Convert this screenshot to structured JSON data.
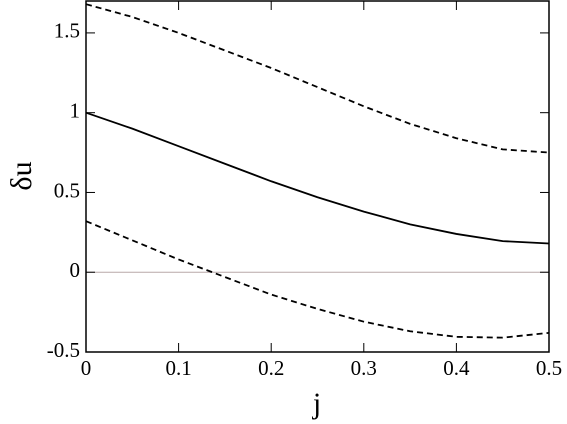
{
  "chart_data": {
    "type": "line",
    "xlabel": "j",
    "ylabel": "δu",
    "x": [
      0,
      0.05,
      0.1,
      0.15,
      0.2,
      0.25,
      0.3,
      0.35,
      0.4,
      0.45,
      0.5
    ],
    "series": [
      {
        "color": "#000000",
        "dash": false,
        "values": [
          1.0,
          0.9,
          0.79,
          0.68,
          0.57,
          0.47,
          0.38,
          0.3,
          0.24,
          0.195,
          0.18
        ]
      },
      {
        "color": "#000000",
        "dash": true,
        "values": [
          1.68,
          1.6,
          1.5,
          1.39,
          1.28,
          1.16,
          1.04,
          0.93,
          0.84,
          0.77,
          0.75
        ]
      },
      {
        "color": "#000000",
        "dash": true,
        "values": [
          0.32,
          0.2,
          0.08,
          -0.03,
          -0.14,
          -0.23,
          -0.31,
          -0.37,
          -0.405,
          -0.41,
          -0.38
        ]
      }
    ],
    "hline": 0,
    "hline_color": "#b8a8a8",
    "xlim": [
      0,
      0.5
    ],
    "xticks": [
      0,
      0.1,
      0.2,
      0.3,
      0.4,
      0.5
    ],
    "ylim": [
      -0.5,
      1.7
    ],
    "yticks": [
      -0.5,
      0,
      0.5,
      1,
      1.5
    ],
    "grid": false
  }
}
